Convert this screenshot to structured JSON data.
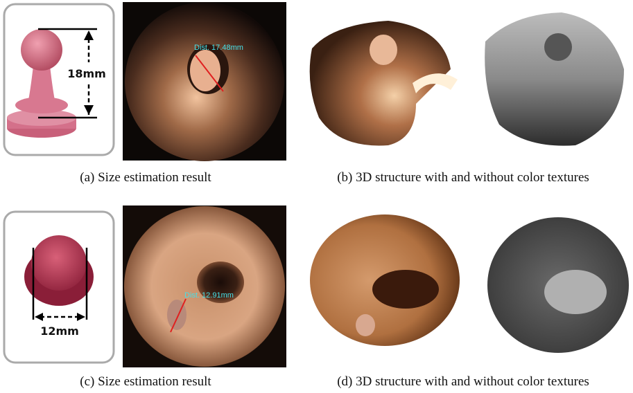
{
  "rows": [
    {
      "size_label": "18mm",
      "distance_label": "Dist. 17.48mm",
      "caption_left": "(a)  Size estimation result",
      "caption_right": "(b)  3D structure with and without color textures"
    },
    {
      "size_label": "12mm",
      "distance_label": "Dist. 12.91mm",
      "caption_left": "(c)  Size estimation result",
      "caption_right": "(d)  3D structure with and without color textures"
    }
  ]
}
